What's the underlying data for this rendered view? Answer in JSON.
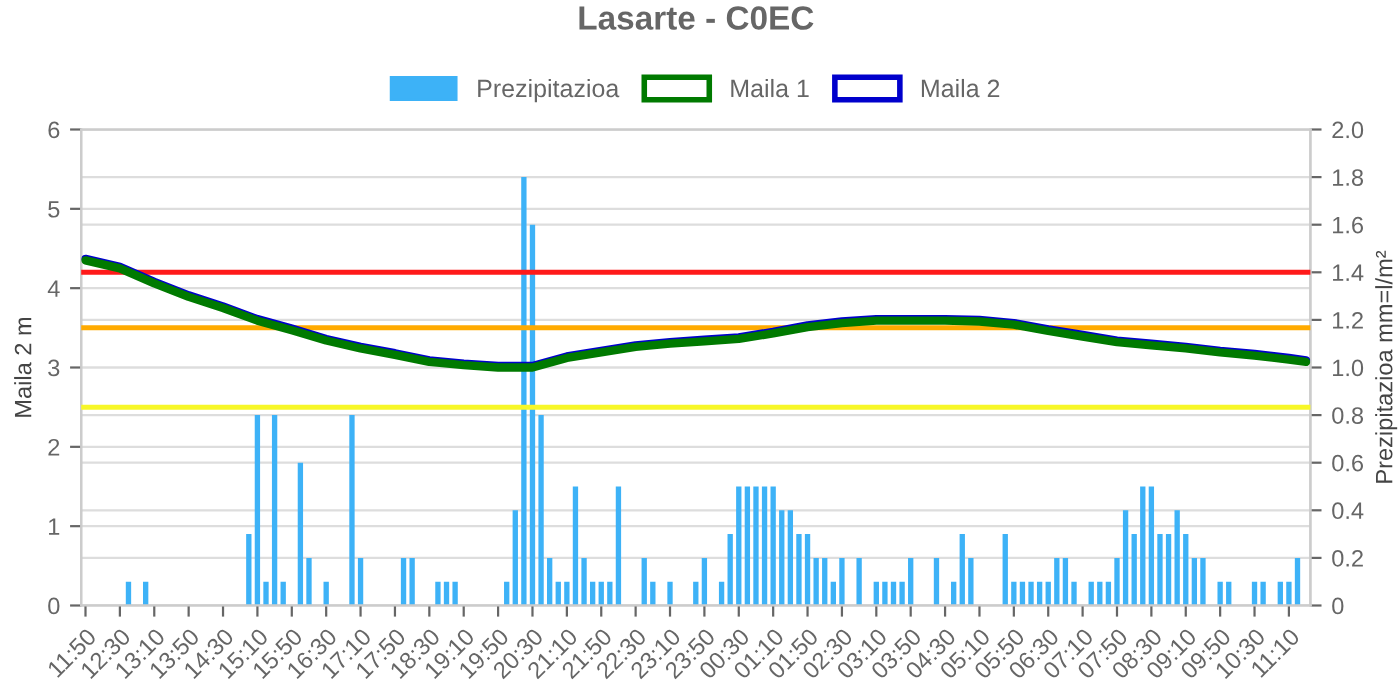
{
  "chart_data": {
    "type": "bar",
    "title": "Lasarte - C0EC",
    "ylabel": "Maila 2 m",
    "y2label": "Prezipitazioa mm=l/m²",
    "categories": [
      "11:50",
      null,
      null,
      null,
      "12:30",
      null,
      null,
      null,
      "13:10",
      null,
      null,
      null,
      "13:50",
      null,
      null,
      null,
      "14:30",
      null,
      null,
      null,
      "15:10",
      null,
      null,
      null,
      "15:50",
      null,
      null,
      null,
      "16:30",
      null,
      null,
      null,
      "17:10",
      null,
      null,
      null,
      "17:50",
      null,
      null,
      null,
      "18:30",
      null,
      null,
      null,
      "19:10",
      null,
      null,
      null,
      "19:50",
      null,
      null,
      null,
      "20:30",
      null,
      null,
      null,
      "21:10",
      null,
      null,
      null,
      "21:50",
      null,
      null,
      null,
      "22:30",
      null,
      null,
      null,
      "23:10",
      null,
      null,
      null,
      "23:50",
      null,
      null,
      null,
      "00:30",
      null,
      null,
      null,
      "01:10",
      null,
      null,
      null,
      "01:50",
      null,
      null,
      null,
      "02:30",
      null,
      null,
      null,
      "03:10",
      null,
      null,
      null,
      "03:50",
      null,
      null,
      null,
      "04:30",
      null,
      null,
      null,
      "05:10",
      null,
      null,
      null,
      "05:50",
      null,
      null,
      null,
      "06:30",
      null,
      null,
      null,
      "07:10",
      null,
      null,
      null,
      "07:50",
      null,
      null,
      null,
      "08:30",
      null,
      null,
      null,
      "09:10",
      null,
      null,
      null,
      "09:50",
      null,
      null,
      null,
      "10:30",
      null,
      null,
      null,
      "11:10",
      null,
      null
    ],
    "series": [
      {
        "name": "Prezipitazioa",
        "axis": "y2",
        "color": "#3db2f7",
        "values": [
          0,
          0,
          0,
          0,
          0,
          0.1,
          0,
          0.1,
          0,
          0,
          0,
          0,
          0,
          0,
          0,
          0,
          0,
          0,
          0,
          0.3,
          0.8,
          0.1,
          0.8,
          0.1,
          0,
          0.6,
          0.2,
          0,
          0.1,
          0,
          0,
          0.8,
          0.2,
          0,
          0,
          0,
          0,
          0.2,
          0.2,
          0,
          0,
          0.1,
          0.1,
          0.1,
          0,
          0,
          0,
          0,
          0,
          0.1,
          0.4,
          1.8,
          1.6,
          0.8,
          0.2,
          0.1,
          0.1,
          0.5,
          0.2,
          0.1,
          0.1,
          0.1,
          0.5,
          0,
          0,
          0.2,
          0.1,
          0,
          0.1,
          0,
          0,
          0.1,
          0.2,
          0,
          0.1,
          0.3,
          0.5,
          0.5,
          0.5,
          0.5,
          0.5,
          0.4,
          0.4,
          0.3,
          0.3,
          0.2,
          0.2,
          0.1,
          0.2,
          0,
          0.2,
          0,
          0.1,
          0.1,
          0.1,
          0.1,
          0.2,
          0,
          0,
          0.2,
          0,
          0.1,
          0.3,
          0.2,
          0,
          0,
          0,
          0.3,
          0.1,
          0.1,
          0.1,
          0.1,
          0.1,
          0.2,
          0.2,
          0.1,
          0,
          0.1,
          0.1,
          0.1,
          0.2,
          0.4,
          0.3,
          0.5,
          0.5,
          0.3,
          0.3,
          0.4,
          0.3,
          0.2,
          0.2,
          0,
          0.1,
          0.1,
          0,
          0,
          0.1,
          0.1,
          0,
          0.1,
          0.1,
          0.2,
          0
        ]
      },
      {
        "name": "Maila 1",
        "type": "line",
        "color": "#007a00",
        "values": [
          4.35,
          null,
          null,
          null,
          4.25,
          null,
          null,
          null,
          4.06,
          null,
          null,
          null,
          3.89,
          null,
          null,
          null,
          3.75,
          null,
          null,
          null,
          3.59,
          null,
          null,
          null,
          3.47,
          null,
          null,
          null,
          3.34,
          null,
          null,
          null,
          3.24,
          null,
          null,
          null,
          3.16,
          null,
          null,
          null,
          3.07,
          null,
          null,
          null,
          3.03,
          null,
          null,
          null,
          3.0,
          null,
          null,
          null,
          3.0,
          null,
          null,
          null,
          3.12,
          null,
          null,
          null,
          3.19,
          null,
          null,
          null,
          3.26,
          null,
          null,
          null,
          3.3,
          null,
          null,
          null,
          3.33,
          null,
          null,
          null,
          3.36,
          null,
          null,
          null,
          3.43,
          null,
          null,
          null,
          3.51,
          null,
          null,
          null,
          3.56,
          null,
          null,
          null,
          3.59,
          null,
          null,
          null,
          3.59,
          null,
          null,
          null,
          3.59,
          null,
          null,
          null,
          3.58,
          null,
          null,
          null,
          3.54,
          null,
          null,
          null,
          3.46,
          null,
          null,
          null,
          3.39,
          null,
          null,
          null,
          3.32,
          null,
          null,
          null,
          3.28,
          null,
          null,
          null,
          3.24,
          null,
          null,
          null,
          3.19,
          null,
          null,
          null,
          3.15,
          null,
          null,
          null,
          3.1,
          null,
          3.07
        ]
      },
      {
        "name": "Maila 2",
        "type": "line",
        "color": "#0000cc",
        "values": [
          4.37,
          null,
          null,
          null,
          4.27,
          null,
          null,
          null,
          4.08,
          null,
          null,
          null,
          3.91,
          null,
          null,
          null,
          3.77,
          null,
          null,
          null,
          3.61,
          null,
          null,
          null,
          3.49,
          null,
          null,
          null,
          3.36,
          null,
          null,
          null,
          3.26,
          null,
          null,
          null,
          3.18,
          null,
          null,
          null,
          3.09,
          null,
          null,
          null,
          3.05,
          null,
          null,
          null,
          3.02,
          null,
          null,
          null,
          3.02,
          null,
          null,
          null,
          3.14,
          null,
          null,
          null,
          3.21,
          null,
          null,
          null,
          3.28,
          null,
          null,
          null,
          3.32,
          null,
          null,
          null,
          3.35,
          null,
          null,
          null,
          3.38,
          null,
          null,
          null,
          3.45,
          null,
          null,
          null,
          3.53,
          null,
          null,
          null,
          3.58,
          null,
          null,
          null,
          3.61,
          null,
          null,
          null,
          3.61,
          null,
          null,
          null,
          3.61,
          null,
          null,
          null,
          3.6,
          null,
          null,
          null,
          3.56,
          null,
          null,
          null,
          3.48,
          null,
          null,
          null,
          3.41,
          null,
          null,
          null,
          3.34,
          null,
          null,
          null,
          3.3,
          null,
          null,
          null,
          3.26,
          null,
          null,
          null,
          3.21,
          null,
          null,
          null,
          3.17,
          null,
          null,
          null,
          3.12,
          null,
          3.09
        ]
      }
    ],
    "ylim": [
      0,
      6
    ],
    "yticks": [
      0,
      1,
      2,
      3,
      4,
      5,
      6
    ],
    "y2lim": [
      0,
      2
    ],
    "y2ticks": [
      0,
      0.2,
      0.4,
      0.6,
      0.8,
      {
        "value": 1,
        "label": "1.0"
      },
      1.2,
      1.4,
      1.6,
      1.8,
      {
        "value": 2,
        "label": "2.0"
      }
    ],
    "ref_lines": [
      {
        "axis": "y",
        "value": 4.2,
        "color": "#ff1a1a"
      },
      {
        "axis": "y",
        "value": 3.5,
        "color": "#ffaa00"
      },
      {
        "axis": "y",
        "value": 2.5,
        "color": "#f7f728"
      }
    ],
    "grid": true,
    "legend": "top",
    "marker": "none",
    "line_style": "solid"
  }
}
